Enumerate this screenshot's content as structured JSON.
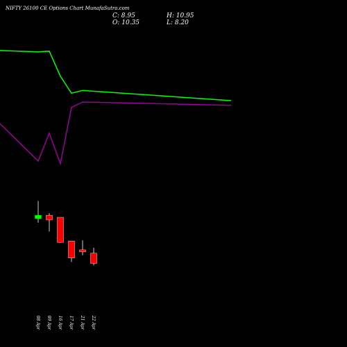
{
  "header": {
    "title": "NIFTY 26100 CE Options Chart MunafaSutra.com",
    "close": "C: 8.95",
    "open": "O: 10.35",
    "high": "H: 10.95",
    "low": "L: 8.20"
  },
  "colors": {
    "background": "#000000",
    "text": "#ffffff",
    "upper_line": "#00ff00",
    "lower_line": "#990099",
    "bull_candle": "#00ff00",
    "bear_candle": "#ff0000",
    "wick": "#ffffff"
  },
  "chart_data": {
    "type": "candlestick",
    "title": "NIFTY 26100 CE Options Chart MunafaSutra.com",
    "candle_dates": [
      "08 Apr",
      "09 Apr",
      "16 Apr",
      "17 Apr",
      "21 Apr",
      "22 Apr"
    ],
    "x_tick_labels": [
      "08 Apr",
      "09 Apr",
      "16 Apr",
      "17 Apr",
      "21 Apr",
      "22 Apr"
    ],
    "ohlc": [
      {
        "o": 20.2,
        "h": 22.8,
        "l": 19.6,
        "c": 20.7
      },
      {
        "o": 20.7,
        "h": 21.0,
        "l": 18.3,
        "c": 20.0
      },
      {
        "o": 20.4,
        "h": 20.4,
        "l": 16.7,
        "c": 16.7
      },
      {
        "o": 16.9,
        "h": 16.9,
        "l": 13.8,
        "c": 14.4
      },
      {
        "o": 15.6,
        "h": 17.0,
        "l": 14.8,
        "c": 15.3
      },
      {
        "o": 15.1,
        "h": 15.9,
        "l": 13.3,
        "c": 13.6
      }
    ],
    "price_range": [
      11.5,
      46.3
    ],
    "upper_line": {
      "x_index": [
        -3,
        0,
        1,
        2,
        3,
        4,
        5
      ],
      "values": [
        45.0,
        44.8,
        44.9,
        41.2,
        38.7,
        39.1,
        37.6
      ]
    },
    "lower_line": {
      "x_index": [
        -3,
        0,
        1,
        2,
        3,
        4,
        5
      ],
      "values": [
        34.2,
        28.7,
        32.8,
        28.3,
        36.6,
        37.4,
        36.9
      ]
    },
    "grid": false,
    "legend": "none"
  }
}
